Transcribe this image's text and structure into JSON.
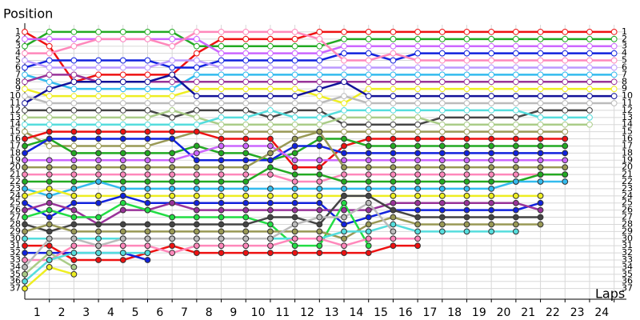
{
  "chart_data": {
    "type": "line",
    "ylabel": "Position",
    "xlabel": "Laps",
    "x": [
      0,
      1,
      2,
      3,
      4,
      5,
      6,
      7,
      8,
      9,
      10,
      11,
      12,
      13,
      14,
      15,
      16,
      17,
      18,
      19,
      20,
      21,
      22,
      23,
      24
    ],
    "xlim": [
      0,
      24.5
    ],
    "xticks": [
      1,
      2,
      3,
      4,
      5,
      6,
      7,
      8,
      9,
      10,
      11,
      12,
      13,
      14,
      15,
      16,
      17,
      18,
      19,
      20,
      21,
      22,
      23,
      24
    ],
    "ylim": [
      38.5,
      0
    ],
    "yticks": [
      1,
      2,
      3,
      4,
      5,
      6,
      7,
      8,
      9,
      10,
      11,
      12,
      13,
      14,
      15,
      16,
      17,
      18,
      19,
      20,
      21,
      22,
      23,
      24,
      25,
      26,
      27,
      28,
      29,
      30,
      31,
      32,
      33,
      34,
      35,
      36,
      37
    ],
    "grid": true,
    "series": [
      {
        "color": "#ee1111",
        "values": [
          1,
          3,
          8,
          7,
          7,
          7,
          7,
          4,
          2,
          2,
          2,
          2,
          1,
          1,
          1,
          1,
          1,
          1,
          1,
          1,
          1,
          1,
          1,
          1,
          1
        ]
      },
      {
        "color": "#22aa22",
        "values": [
          3,
          1,
          1,
          1,
          1,
          1,
          1,
          3,
          3,
          3,
          3,
          3,
          3,
          2,
          2,
          2,
          2,
          2,
          2,
          2,
          2,
          2,
          2,
          2,
          2
        ]
      },
      {
        "color": "#cc66ff",
        "values": [
          2,
          2,
          2,
          2,
          2,
          2,
          2,
          2,
          4,
          4,
          4,
          4,
          4,
          3,
          3,
          3,
          3,
          3,
          3,
          3,
          3,
          3,
          3,
          3,
          3
        ]
      },
      {
        "color": "#1122dd",
        "values": [
          6,
          5,
          5,
          5,
          5,
          5,
          6,
          6,
          5,
          5,
          5,
          5,
          5,
          4,
          4,
          5,
          4,
          4,
          4,
          4,
          4,
          4,
          4,
          4,
          4
        ]
      },
      {
        "color": "#ff88bb",
        "values": [
          4,
          4,
          3,
          2,
          2,
          2,
          3,
          1,
          1,
          1,
          1,
          1,
          2,
          5,
          5,
          4,
          5,
          5,
          5,
          5,
          5,
          5,
          5,
          5,
          5
        ]
      },
      {
        "color": "#bb99ff",
        "values": [
          5,
          6,
          6,
          6,
          6,
          6,
          5,
          5,
          6,
          6,
          6,
          6,
          6,
          6,
          6,
          6,
          6,
          6,
          6,
          6,
          6,
          6,
          6,
          6,
          6
        ]
      },
      {
        "color": "#33bbee",
        "values": [
          7,
          8,
          9,
          9,
          9,
          9,
          9,
          7,
          7,
          7,
          7,
          7,
          7,
          7,
          7,
          7,
          7,
          7,
          7,
          7,
          7,
          7,
          7,
          7,
          7
        ]
      },
      {
        "color": "#993399",
        "values": [
          8,
          7,
          7,
          8,
          8,
          8,
          8,
          8,
          8,
          8,
          8,
          8,
          8,
          8,
          8,
          8,
          8,
          8,
          8,
          8,
          8,
          8,
          8,
          8,
          8
        ]
      },
      {
        "color": "#eeee22",
        "values": [
          9,
          10,
          10,
          10,
          10,
          10,
          10,
          9,
          9,
          9,
          9,
          9,
          10,
          11,
          9,
          9,
          9,
          9,
          9,
          9,
          9,
          9,
          9,
          9,
          9
        ]
      },
      {
        "color": "#111199",
        "values": [
          11,
          9,
          8,
          8,
          8,
          8,
          7,
          10,
          10,
          10,
          10,
          10,
          9,
          8,
          10,
          10,
          10,
          10,
          10,
          10,
          10,
          10,
          10,
          10,
          10
        ]
      },
      {
        "color": "#bbbbbb",
        "values": [
          10,
          11,
          11,
          11,
          11,
          11,
          11,
          11,
          11,
          11,
          11,
          11,
          11,
          10,
          11,
          11,
          11,
          11,
          11,
          11,
          11,
          11,
          11,
          11,
          11
        ]
      },
      {
        "color": "#444444",
        "values": [
          12,
          12,
          12,
          12,
          12,
          12,
          13,
          12,
          12,
          12,
          13,
          12,
          12,
          14,
          14,
          14,
          14,
          13,
          13,
          13,
          13,
          12,
          12,
          12,
          null
        ]
      },
      {
        "color": "#aacc88",
        "values": [
          13,
          13,
          13,
          13,
          13,
          13,
          12,
          13,
          14,
          14,
          14,
          14,
          14,
          13,
          13,
          13,
          13,
          14,
          14,
          14,
          14,
          14,
          14,
          14,
          null
        ]
      },
      {
        "color": "#55dddd",
        "values": [
          14,
          14,
          14,
          14,
          14,
          14,
          14,
          14,
          13,
          13,
          12,
          13,
          13,
          12,
          12,
          12,
          12,
          12,
          12,
          12,
          12,
          13,
          13,
          13,
          null
        ]
      },
      {
        "color": "#999955",
        "values": [
          15,
          17,
          17,
          17,
          17,
          17,
          16,
          15,
          15,
          15,
          15,
          15,
          15,
          15,
          15,
          15,
          15,
          15,
          15,
          15,
          15,
          15,
          15,
          null,
          null
        ]
      },
      {
        "color": "#ee1111",
        "values": [
          16,
          15,
          15,
          15,
          15,
          15,
          15,
          15,
          16,
          16,
          16,
          20,
          20,
          17,
          16,
          16,
          16,
          16,
          16,
          16,
          16,
          16,
          16,
          null,
          null
        ]
      },
      {
        "color": "#22aa22",
        "values": [
          17,
          16,
          18,
          18,
          18,
          18,
          18,
          17,
          18,
          18,
          19,
          18,
          16,
          16,
          17,
          17,
          17,
          17,
          17,
          17,
          17,
          17,
          17,
          null,
          null
        ]
      },
      {
        "color": "#1122dd",
        "values": [
          18,
          16,
          16,
          16,
          16,
          16,
          16,
          19,
          19,
          19,
          19,
          17,
          17,
          18,
          18,
          18,
          18,
          18,
          18,
          18,
          18,
          18,
          18,
          null,
          null
        ]
      },
      {
        "color": "#cc66ff",
        "values": [
          19,
          19,
          19,
          19,
          19,
          19,
          19,
          18,
          17,
          17,
          17,
          19,
          19,
          19,
          19,
          19,
          19,
          19,
          19,
          19,
          19,
          19,
          19,
          null,
          null
        ]
      },
      {
        "color": "#999955",
        "values": [
          20,
          20,
          20,
          20,
          20,
          20,
          20,
          20,
          20,
          20,
          18,
          16,
          15,
          20,
          20,
          20,
          20,
          20,
          20,
          20,
          20,
          20,
          20,
          null,
          null
        ]
      },
      {
        "color": "#ff88bb",
        "values": [
          21,
          21,
          21,
          21,
          21,
          21,
          21,
          21,
          21,
          21,
          21,
          22,
          22,
          21,
          21,
          21,
          21,
          21,
          21,
          21,
          21,
          21,
          21,
          null,
          null
        ]
      },
      {
        "color": "#22aa22",
        "values": [
          22,
          22,
          22,
          22,
          22,
          22,
          22,
          22,
          22,
          22,
          20,
          21,
          21,
          22,
          22,
          22,
          22,
          22,
          22,
          22,
          22,
          21,
          21,
          null,
          null
        ]
      },
      {
        "color": "#33bbee",
        "values": [
          23,
          24,
          23,
          22,
          23,
          23,
          23,
          23,
          23,
          23,
          23,
          23,
          23,
          23,
          23,
          23,
          23,
          23,
          23,
          23,
          22,
          22,
          22,
          null,
          null
        ]
      },
      {
        "color": "#eeee22",
        "values": [
          24,
          23,
          24,
          24,
          24,
          24,
          24,
          24,
          24,
          24,
          24,
          24,
          24,
          24,
          24,
          24,
          24,
          24,
          24,
          24,
          24,
          24,
          null,
          null,
          null
        ]
      },
      {
        "color": "#1122dd",
        "values": [
          25,
          27,
          25,
          25,
          24,
          25,
          25,
          25,
          25,
          25,
          25,
          25,
          25,
          28,
          27,
          26,
          26,
          26,
          26,
          26,
          26,
          25,
          null,
          null,
          null
        ]
      },
      {
        "color": "#993399",
        "values": [
          26,
          25,
          26,
          28,
          26,
          26,
          25,
          26,
          26,
          26,
          26,
          26,
          26,
          26,
          26,
          25,
          25,
          25,
          25,
          25,
          25,
          26,
          null,
          null,
          null
        ]
      },
      {
        "color": "#22dd44",
        "values": [
          27,
          26,
          27,
          27,
          25,
          26,
          27,
          27,
          27,
          27,
          28,
          31,
          31,
          25,
          31,
          null,
          null,
          null,
          null,
          null,
          null,
          null,
          null,
          null,
          null
        ]
      },
      {
        "color": "#444444",
        "values": [
          28,
          29,
          28,
          28,
          28,
          28,
          28,
          28,
          28,
          28,
          27,
          27,
          28,
          24,
          24,
          26,
          27,
          27,
          27,
          27,
          27,
          27,
          null,
          null,
          null
        ]
      },
      {
        "color": "#999955",
        "values": [
          29,
          28,
          29,
          29,
          29,
          29,
          29,
          29,
          29,
          29,
          29,
          29,
          29,
          30,
          28,
          27,
          28,
          28,
          28,
          28,
          28,
          28,
          null,
          null,
          null
        ]
      },
      {
        "color": "#55dddd",
        "values": [
          30,
          30,
          30,
          30,
          30,
          30,
          30,
          30,
          30,
          30,
          30,
          30,
          30,
          29,
          29,
          28,
          29,
          29,
          29,
          29,
          29,
          null,
          null,
          null,
          null
        ]
      },
      {
        "color": "#ee1111",
        "values": [
          31,
          31,
          33,
          33,
          33,
          32,
          31,
          32,
          32,
          32,
          32,
          32,
          32,
          32,
          32,
          31,
          31,
          null,
          null,
          null,
          null,
          null,
          null,
          null,
          null
        ]
      },
      {
        "color": "#1122dd",
        "values": [
          32,
          32,
          32,
          32,
          32,
          33,
          null,
          null,
          null,
          null,
          null,
          null,
          null,
          null,
          null,
          null,
          null,
          null,
          null,
          null,
          null,
          null,
          null,
          null,
          null
        ]
      },
      {
        "color": "#ff88bb",
        "values": [
          33,
          33,
          31,
          31,
          31,
          31,
          32,
          31,
          31,
          31,
          31,
          30,
          30,
          31,
          30,
          30,
          30,
          null,
          null,
          null,
          null,
          null,
          null,
          null,
          null
        ]
      },
      {
        "color": "#bbbbbb",
        "values": [
          34,
          30,
          30,
          31,
          30,
          30,
          30,
          30,
          30,
          30,
          30,
          28,
          27,
          27,
          25,
          29,
          null,
          null,
          null,
          null,
          null,
          null,
          null,
          null,
          null
        ]
      },
      {
        "color": "#aacc88",
        "values": [
          35,
          32,
          34,
          null,
          null,
          null,
          null,
          null,
          null,
          null,
          null,
          null,
          null,
          null,
          null,
          null,
          null,
          null,
          null,
          null,
          null,
          null,
          null,
          null,
          null
        ]
      },
      {
        "color": "#55dddd",
        "values": [
          36,
          33,
          32,
          32,
          32,
          32,
          null,
          null,
          null,
          null,
          null,
          null,
          null,
          null,
          null,
          null,
          null,
          null,
          null,
          null,
          null,
          null,
          null,
          null,
          null
        ]
      },
      {
        "color": "#eeee22",
        "values": [
          37,
          34,
          35,
          null,
          null,
          null,
          null,
          null,
          null,
          null,
          null,
          null,
          null,
          null,
          null,
          null,
          null,
          null,
          null,
          null,
          null,
          null,
          null,
          null,
          null
        ]
      }
    ]
  }
}
